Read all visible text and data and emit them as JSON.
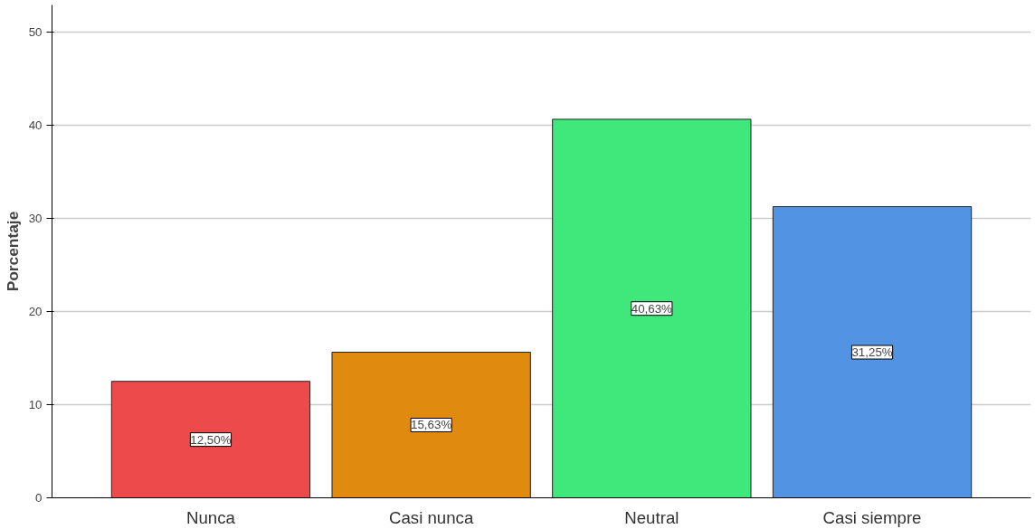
{
  "chart_data": {
    "type": "bar",
    "ylabel": "Porcentaje",
    "categories": [
      "Nunca",
      "Casi nunca",
      "Neutral",
      "Casi siempre"
    ],
    "values": [
      12.5,
      15.63,
      40.63,
      31.25
    ],
    "colors": [
      "#ed4b4b",
      "#e08a10",
      "#40e87c",
      "#5294e3"
    ],
    "value_labels": [
      "12,50%",
      "15,63%",
      "40,63%",
      "31,25%"
    ],
    "ylim": [
      0,
      52.9
    ],
    "yticks": [
      0,
      10,
      20,
      30,
      40,
      50
    ],
    "grid": "y"
  }
}
